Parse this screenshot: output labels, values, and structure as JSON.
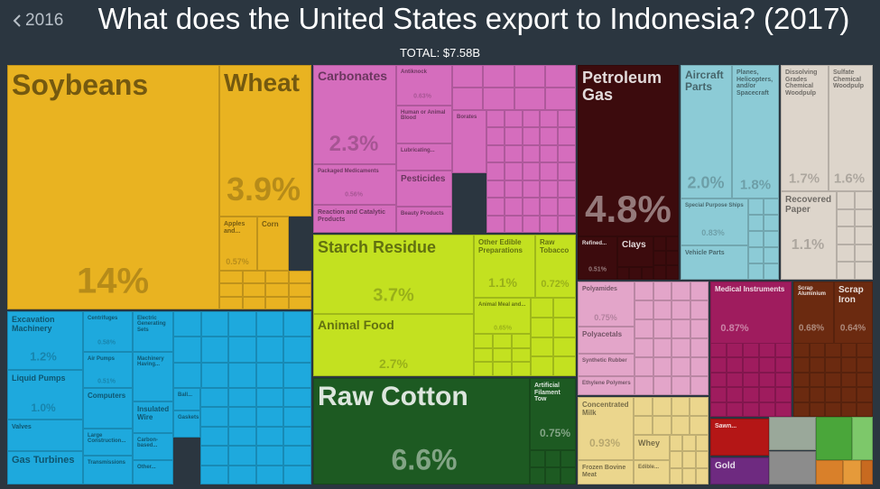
{
  "chart_data": {
    "type": "treemap",
    "title": "What does the United States export to Indonesia? (2017)",
    "subtitle": "TOTAL: $7.58B",
    "back_label": "2016",
    "groups": [
      {
        "color": "#e9b321",
        "items": [
          {
            "name": "Soybeans",
            "value": 14,
            "value_label": "14%"
          },
          {
            "name": "Wheat",
            "value": 3.9,
            "value_label": "3.9%"
          },
          {
            "name": "Apples and...",
            "value": 0.57,
            "value_label": "0.57%"
          },
          {
            "name": "Corn"
          }
        ]
      },
      {
        "color": "#1ea9dd",
        "items": [
          {
            "name": "Excavation Machinery",
            "value": 1.2,
            "value_label": "1.2%"
          },
          {
            "name": "Centrifuges",
            "value": 0.58,
            "value_label": "0.58%"
          },
          {
            "name": "Electric Generating Sets"
          },
          {
            "name": "Air Pumps",
            "value": 0.51,
            "value_label": "0.51%"
          },
          {
            "name": "Machinery Having..."
          },
          {
            "name": "Liquid Pumps",
            "value": 1.0,
            "value_label": "1.0%"
          },
          {
            "name": "Computers"
          },
          {
            "name": "Insulated Wire"
          },
          {
            "name": "Ball..."
          },
          {
            "name": "Gaskets"
          },
          {
            "name": "Valves"
          },
          {
            "name": "Large Construction..."
          },
          {
            "name": "Carbon-based..."
          },
          {
            "name": "Gas Turbines"
          },
          {
            "name": "Transmissions"
          },
          {
            "name": "Other..."
          }
        ]
      },
      {
        "color": "#d56dbd",
        "items": [
          {
            "name": "Carbonates",
            "value": 2.3,
            "value_label": "2.3%"
          },
          {
            "name": "Antiknock",
            "value": 0.63,
            "value_label": "0.63%"
          },
          {
            "name": "Human or Animal Blood"
          },
          {
            "name": "Lubricating..."
          },
          {
            "name": "Borates"
          },
          {
            "name": "Packaged Medicaments",
            "value": 0.56,
            "value_label": "0.56%"
          },
          {
            "name": "Pesticides"
          },
          {
            "name": "Reaction and Catalytic Products"
          },
          {
            "name": "Beauty Products"
          }
        ]
      },
      {
        "color": "#c3e120",
        "items": [
          {
            "name": "Starch Residue",
            "value": 3.7,
            "value_label": "3.7%"
          },
          {
            "name": "Other Edible Preparations",
            "value": 1.1,
            "value_label": "1.1%"
          },
          {
            "name": "Raw Tobacco",
            "value": 0.72,
            "value_label": "0.72%"
          },
          {
            "name": "Animal Meal and...",
            "value": 0.65,
            "value_label": "0.65%"
          },
          {
            "name": "Animal Food",
            "value": 2.7,
            "value_label": "2.7%"
          }
        ]
      },
      {
        "color": "#1d5a22",
        "items": [
          {
            "name": "Raw Cotton",
            "value": 6.6,
            "value_label": "6.6%"
          },
          {
            "name": "Artificial Filament Tow",
            "value": 0.75,
            "value_label": "0.75%"
          }
        ]
      },
      {
        "color": "#3c0b0d",
        "items": [
          {
            "name": "Petroleum Gas",
            "value": 4.8,
            "value_label": "4.8%"
          },
          {
            "name": "Refined...",
            "value": 0.51,
            "value_label": "0.51%"
          },
          {
            "name": "Clays"
          }
        ]
      },
      {
        "color": "#8ccbd6",
        "items": [
          {
            "name": "Aircraft Parts",
            "value": 2.0,
            "value_label": "2.0%"
          },
          {
            "name": "Planes, Helicopters, and/or Spacecraft",
            "value": 1.8,
            "value_label": "1.8%"
          },
          {
            "name": "Special Purpose Ships",
            "value": 0.83,
            "value_label": "0.83%"
          },
          {
            "name": "Vehicle Parts"
          }
        ]
      },
      {
        "color": "#ddd5cb",
        "items": [
          {
            "name": "Dissolving Grades Chemical Woodpulp",
            "value": 1.7,
            "value_label": "1.7%"
          },
          {
            "name": "Sulfate Chemical Woodpulp",
            "value": 1.6,
            "value_label": "1.6%"
          },
          {
            "name": "Recovered Paper",
            "value": 1.1,
            "value_label": "1.1%"
          }
        ]
      },
      {
        "color": "#e3a5c9",
        "items": [
          {
            "name": "Polyamides",
            "value": 0.75,
            "value_label": "0.75%"
          },
          {
            "name": "Polyacetals"
          },
          {
            "name": "Synthetic Rubber"
          },
          {
            "name": "Ethylene Polymers"
          }
        ]
      },
      {
        "color": "#ebd68d",
        "items": [
          {
            "name": "Concentrated Milk",
            "value": 0.93,
            "value_label": "0.93%"
          },
          {
            "name": "Whey"
          },
          {
            "name": "Frozen Bovine Meat"
          },
          {
            "name": "Edible..."
          }
        ]
      },
      {
        "color": "#9f1c5e",
        "items": [
          {
            "name": "Medical Instruments",
            "value": 0.87,
            "value_label": "0.87%"
          }
        ]
      },
      {
        "color": "#6b2a10",
        "items": [
          {
            "name": "Scrap Aluminium",
            "value": 0.68,
            "value_label": "0.68%"
          },
          {
            "name": "Scrap Iron",
            "value": 0.64,
            "value_label": "0.64%"
          }
        ]
      },
      {
        "color": "#b41616",
        "items": [
          {
            "name": "Sawn..."
          }
        ]
      },
      {
        "color": "#6e2a80",
        "items": [
          {
            "name": "Gold"
          }
        ]
      }
    ]
  }
}
